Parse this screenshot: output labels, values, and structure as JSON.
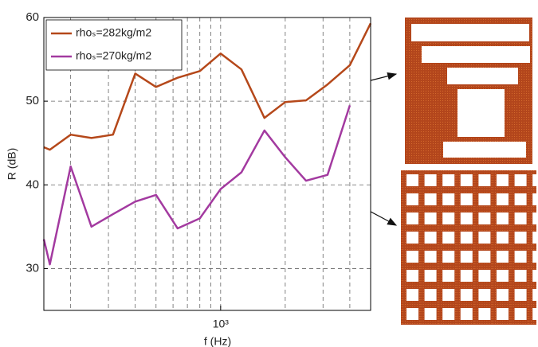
{
  "chart_data": {
    "type": "line",
    "x": [
      150,
      160,
      200,
      250,
      315,
      400,
      500,
      630,
      800,
      1000,
      1250,
      1600,
      2000,
      2500,
      3150,
      4000,
      5000
    ],
    "series": [
      {
        "name": "rhoₛ=282kg/m2",
        "color": "#b5481a",
        "values": [
          44.5,
          44.2,
          46,
          45.6,
          46,
          53.3,
          51.7,
          52.8,
          53.6,
          55.7,
          53.8,
          48,
          49.9,
          50.1,
          52,
          54.3,
          59.3
        ]
      },
      {
        "name": "rhoₛ=270kg/m2",
        "color": "#a33aa0",
        "values": [
          33.5,
          30.5,
          42.2,
          35,
          36.5,
          38,
          38.8,
          34.8,
          36,
          39.5,
          41.5,
          46.5,
          43.3,
          40.5,
          41.2,
          49.5,
          null
        ]
      }
    ],
    "xlabel": "f (Hz)",
    "ylabel": "R (dB)",
    "xscale": "log",
    "xlim": [
      150,
      5000
    ],
    "ylim": [
      25,
      60
    ],
    "xticks": [
      {
        "value": 1000,
        "label": "10³"
      }
    ],
    "xgrid": [
      200,
      300,
      400,
      500,
      600,
      700,
      800,
      900,
      1000,
      2000,
      3000,
      4000,
      5000
    ],
    "yticks": [
      30,
      40,
      50,
      60
    ],
    "grid": true,
    "legend": "upper left"
  }
}
